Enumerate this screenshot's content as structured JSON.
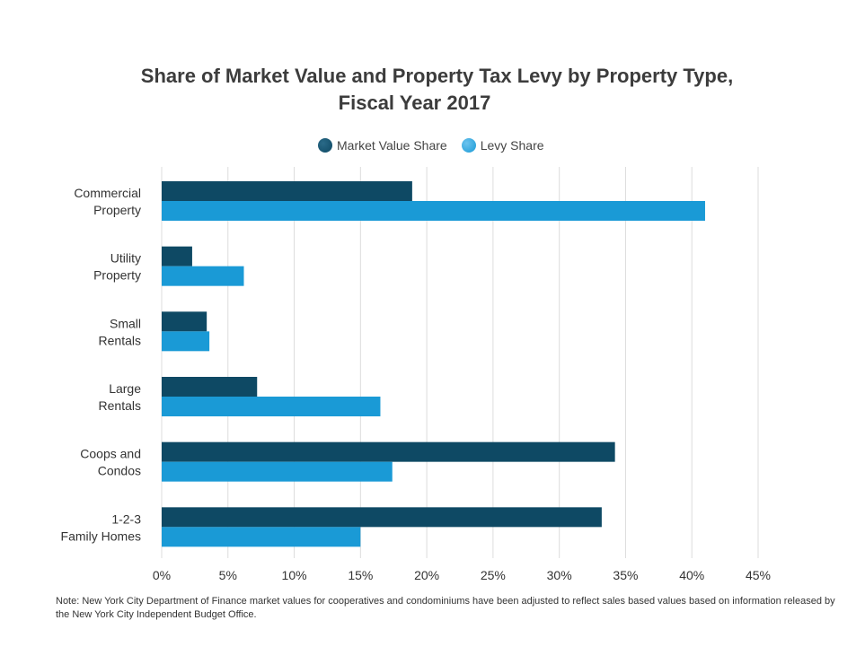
{
  "chart_data": {
    "type": "bar",
    "orientation": "horizontal",
    "title_line1": "Share of Market Value and Property Tax Levy by Property Type,",
    "title_line2": "Fiscal Year 2017",
    "categories": [
      [
        "Commercial",
        "Property"
      ],
      [
        "Utility",
        "Property"
      ],
      [
        "Small",
        "Rentals"
      ],
      [
        "Large",
        "Rentals"
      ],
      [
        "Coops and",
        "Condos"
      ],
      [
        "1-2-3",
        "Family Homes"
      ]
    ],
    "series": [
      {
        "name": "Market Value Share",
        "color": "#0e4964",
        "values": [
          18.9,
          2.3,
          3.4,
          7.2,
          34.2,
          33.2
        ]
      },
      {
        "name": "Levy Share",
        "color": "#1a9ad6",
        "values": [
          41.0,
          6.2,
          3.6,
          16.5,
          17.4,
          15.0
        ]
      }
    ],
    "xlim": [
      0,
      45
    ],
    "xticks": [
      0,
      5,
      10,
      15,
      20,
      25,
      30,
      35,
      40,
      45
    ],
    "xtick_labels": [
      "0%",
      "5%",
      "10%",
      "15%",
      "20%",
      "25%",
      "30%",
      "35%",
      "40%",
      "45%"
    ],
    "grid": true,
    "legend_position": "top-center",
    "note": "Note: New York City Department of Finance market values for cooperatives and condominiums  have been adjusted to reflect sales based values based on information released by the New York City Independent Budget Office."
  }
}
